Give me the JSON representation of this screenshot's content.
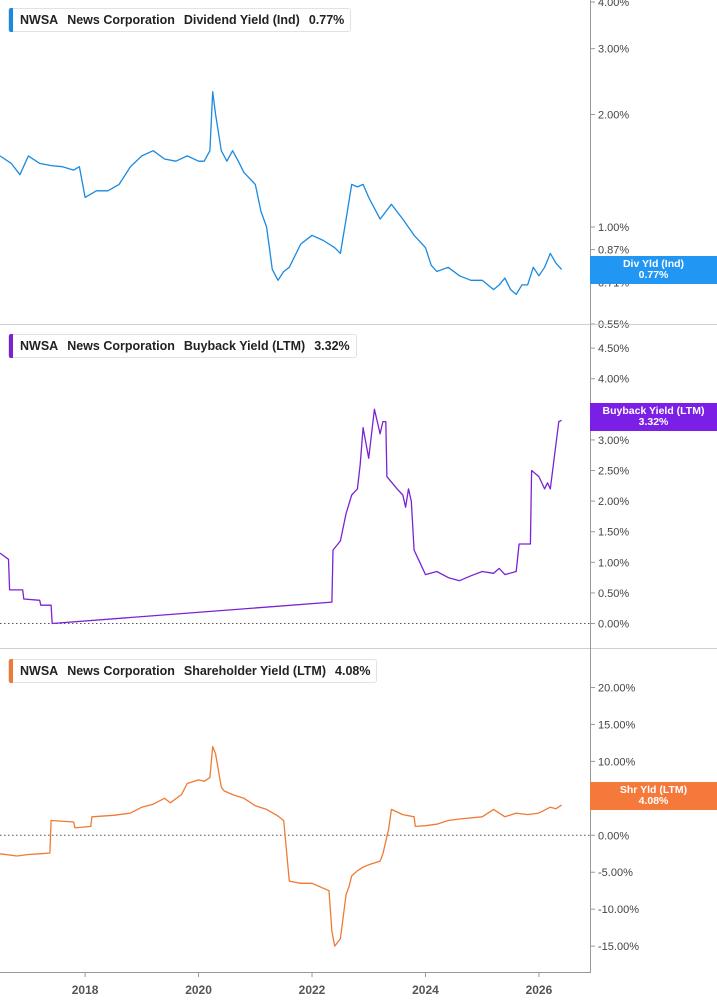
{
  "chart_data": [
    {
      "type": "line",
      "ticker": "NWSA",
      "company": "News Corporation",
      "metric": "Dividend Yield (Ind)",
      "current_value": "0.77%",
      "badge_label": "Div Yld (Ind)",
      "badge_value": "0.77%",
      "color": "#1a8ae0",
      "badge_color": "#2196f3",
      "y_scale": "log",
      "ylim": [
        0.55,
        4.0
      ],
      "y_ticks": [
        {
          "value": 4.0,
          "label": "4.00%"
        },
        {
          "value": 3.0,
          "label": "3.00%"
        },
        {
          "value": 2.0,
          "label": "2.00%"
        },
        {
          "value": 1.0,
          "label": "1.00%"
        },
        {
          "value": 0.87,
          "label": "0.87%"
        },
        {
          "value": 0.71,
          "label": "0.71%"
        },
        {
          "value": 0.55,
          "label": "0.55%"
        }
      ],
      "series": [
        {
          "x": [
            2016.5,
            2016.7,
            2016.85,
            2017.0,
            2017.2,
            2017.4,
            2017.6,
            2017.8,
            2017.9,
            2018.0,
            2018.2,
            2018.4,
            2018.6,
            2018.8,
            2019.0,
            2019.2,
            2019.4,
            2019.6,
            2019.8,
            2020.0,
            2020.1,
            2020.2,
            2020.25,
            2020.3,
            2020.4,
            2020.5,
            2020.6,
            2020.7,
            2020.8,
            2021.0,
            2021.1,
            2021.2,
            2021.3,
            2021.4,
            2021.5,
            2021.6,
            2021.8,
            2022.0,
            2022.2,
            2022.4,
            2022.5,
            2022.6,
            2022.7,
            2022.8,
            2022.9,
            2023.0,
            2023.2,
            2023.4,
            2023.6,
            2023.8,
            2024.0,
            2024.1,
            2024.2,
            2024.4,
            2024.6,
            2024.8,
            2025.0,
            2025.2,
            2025.3,
            2025.4,
            2025.5,
            2025.6,
            2025.7,
            2025.8,
            2025.9,
            2026.0,
            2026.1,
            2026.2,
            2026.3,
            2026.4
          ],
          "values": [
            1.55,
            1.48,
            1.38,
            1.55,
            1.48,
            1.46,
            1.45,
            1.42,
            1.45,
            1.2,
            1.25,
            1.25,
            1.3,
            1.45,
            1.55,
            1.6,
            1.52,
            1.5,
            1.55,
            1.5,
            1.5,
            1.6,
            2.3,
            2.0,
            1.6,
            1.5,
            1.6,
            1.5,
            1.4,
            1.3,
            1.1,
            1.0,
            0.77,
            0.72,
            0.76,
            0.78,
            0.9,
            0.95,
            0.92,
            0.88,
            0.85,
            1.05,
            1.3,
            1.28,
            1.3,
            1.2,
            1.05,
            1.15,
            1.05,
            0.95,
            0.88,
            0.79,
            0.76,
            0.78,
            0.74,
            0.72,
            0.72,
            0.68,
            0.7,
            0.73,
            0.68,
            0.66,
            0.7,
            0.7,
            0.78,
            0.74,
            0.78,
            0.85,
            0.8,
            0.77
          ]
        }
      ]
    },
    {
      "type": "line",
      "ticker": "NWSA",
      "company": "News Corporation",
      "metric": "Buyback Yield (LTM)",
      "current_value": "3.32%",
      "badge_label": "Buyback Yield (LTM)",
      "badge_value": "3.32%",
      "color": "#7b22d4",
      "badge_color": "#7c1fe6",
      "y_scale": "linear",
      "ylim": [
        -0.4,
        4.6
      ],
      "zero_line": true,
      "y_ticks": [
        {
          "value": 4.5,
          "label": "4.50%"
        },
        {
          "value": 4.0,
          "label": "4.00%"
        },
        {
          "value": 3.5,
          "label": "3.50%"
        },
        {
          "value": 3.0,
          "label": "3.00%"
        },
        {
          "value": 2.5,
          "label": "2.50%"
        },
        {
          "value": 2.0,
          "label": "2.00%"
        },
        {
          "value": 1.5,
          "label": "1.50%"
        },
        {
          "value": 1.0,
          "label": "1.00%"
        },
        {
          "value": 0.5,
          "label": "0.50%"
        },
        {
          "value": 0.0,
          "label": "0.00%"
        }
      ],
      "series": [
        {
          "x": [
            2016.5,
            2016.65,
            2016.67,
            2016.9,
            2016.92,
            2017.2,
            2017.22,
            2017.4,
            2017.42,
            2022.35,
            2022.37,
            2022.5,
            2022.6,
            2022.7,
            2022.8,
            2022.85,
            2022.9,
            2023.0,
            2023.1,
            2023.15,
            2023.2,
            2023.25,
            2023.3,
            2023.32,
            2023.5,
            2023.6,
            2023.65,
            2023.7,
            2023.75,
            2023.8,
            2023.9,
            2024.0,
            2024.2,
            2024.4,
            2024.6,
            2024.8,
            2025.0,
            2025.2,
            2025.3,
            2025.4,
            2025.6,
            2025.65,
            2025.85,
            2025.87,
            2026.0,
            2026.1,
            2026.15,
            2026.2,
            2026.35,
            2026.4
          ],
          "values": [
            1.15,
            1.05,
            0.55,
            0.55,
            0.4,
            0.38,
            0.3,
            0.3,
            0.0,
            0.35,
            1.2,
            1.35,
            1.8,
            2.1,
            2.2,
            2.6,
            3.2,
            2.7,
            3.5,
            3.3,
            3.1,
            3.3,
            3.3,
            2.4,
            2.2,
            2.1,
            1.9,
            2.2,
            2.0,
            1.2,
            1.0,
            0.8,
            0.85,
            0.75,
            0.7,
            0.78,
            0.85,
            0.82,
            0.9,
            0.8,
            0.85,
            1.3,
            1.3,
            2.5,
            2.4,
            2.2,
            2.3,
            2.2,
            3.3,
            3.32
          ]
        }
      ]
    },
    {
      "type": "line",
      "ticker": "NWSA",
      "company": "News Corporation",
      "metric": "Shareholder Yield (LTM)",
      "current_value": "4.08%",
      "badge_label": "Shr Yld (LTM)",
      "badge_value": "4.08%",
      "color": "#f07a35",
      "badge_color": "#f5793b",
      "y_scale": "linear",
      "ylim": [
        -18.5,
        22.5
      ],
      "zero_line": true,
      "y_ticks": [
        {
          "value": 20,
          "label": "20.00%"
        },
        {
          "value": 15,
          "label": "15.00%"
        },
        {
          "value": 10,
          "label": "10.00%"
        },
        {
          "value": 5,
          "label": "5.00%"
        },
        {
          "value": 0,
          "label": "0.00%"
        },
        {
          "value": -5,
          "label": "-5.00%"
        },
        {
          "value": -10,
          "label": "-10.00%"
        },
        {
          "value": -15,
          "label": "-15.00%"
        }
      ],
      "x_ticks": [
        {
          "value": 2018,
          "label": "2018"
        },
        {
          "value": 2020,
          "label": "2020"
        },
        {
          "value": 2022,
          "label": "2022"
        },
        {
          "value": 2024,
          "label": "2024"
        },
        {
          "value": 2026,
          "label": "2026"
        }
      ],
      "series": [
        {
          "x": [
            2016.5,
            2016.8,
            2017.0,
            2017.2,
            2017.38,
            2017.4,
            2017.8,
            2017.82,
            2018.1,
            2018.12,
            2018.5,
            2018.8,
            2019.0,
            2019.2,
            2019.4,
            2019.5,
            2019.7,
            2019.8,
            2020.0,
            2020.1,
            2020.2,
            2020.25,
            2020.3,
            2020.4,
            2020.45,
            2020.6,
            2020.8,
            2021.0,
            2021.2,
            2021.4,
            2021.5,
            2021.6,
            2021.8,
            2022.0,
            2022.3,
            2022.35,
            2022.4,
            2022.5,
            2022.6,
            2022.65,
            2022.7,
            2022.8,
            2022.9,
            2023.0,
            2023.2,
            2023.25,
            2023.35,
            2023.4,
            2023.6,
            2023.8,
            2023.82,
            2024.0,
            2024.2,
            2024.4,
            2024.6,
            2025.0,
            2025.2,
            2025.4,
            2025.6,
            2025.8,
            2026.0,
            2026.2,
            2026.3,
            2026.4
          ],
          "values": [
            -2.5,
            -2.8,
            -2.6,
            -2.5,
            -2.4,
            2.0,
            1.8,
            1.0,
            1.2,
            2.5,
            2.7,
            3.0,
            3.8,
            4.2,
            5.0,
            4.4,
            5.5,
            7.0,
            7.5,
            7.3,
            7.8,
            12.0,
            11.0,
            6.5,
            6.0,
            5.5,
            5.0,
            4.0,
            3.5,
            2.6,
            2.0,
            -6.2,
            -6.5,
            -6.5,
            -7.5,
            -13.0,
            -15.0,
            -14.0,
            -8.0,
            -7.0,
            -5.5,
            -4.8,
            -4.3,
            -4.0,
            -3.5,
            -2.5,
            0.8,
            3.5,
            2.8,
            2.5,
            1.2,
            1.3,
            1.5,
            2.0,
            2.2,
            2.5,
            3.5,
            2.5,
            3.0,
            2.8,
            3.0,
            3.8,
            3.6,
            4.08
          ]
        }
      ]
    }
  ]
}
